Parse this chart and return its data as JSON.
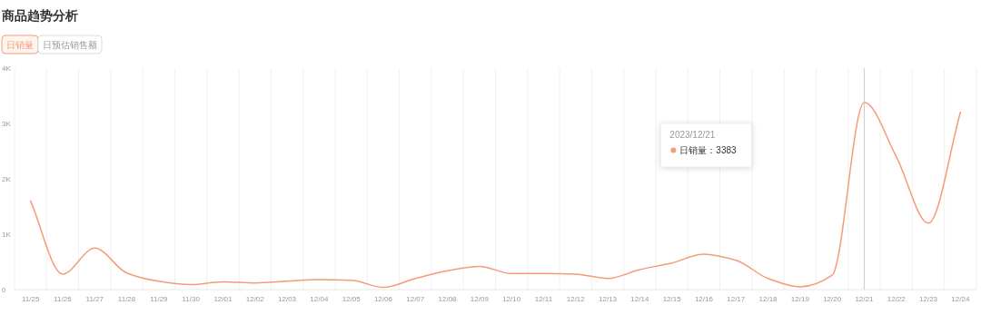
{
  "chart_data": {
    "type": "line",
    "title": "商品趋势分析",
    "categories": [
      "11/25",
      "11/26",
      "11/27",
      "11/28",
      "11/29",
      "11/30",
      "12/01",
      "12/02",
      "12/03",
      "12/04",
      "12/05",
      "12/06",
      "12/07",
      "12/08",
      "12/09",
      "12/10",
      "12/11",
      "12/12",
      "12/13",
      "12/14",
      "12/15",
      "12/16",
      "12/17",
      "12/18",
      "12/19",
      "12/20",
      "12/21",
      "12/22",
      "12/23",
      "12/24"
    ],
    "series": [
      {
        "name": "日销量",
        "color": "#f59a7a",
        "values": [
          1600,
          280,
          750,
          300,
          150,
          90,
          140,
          120,
          150,
          180,
          170,
          40,
          200,
          340,
          420,
          290,
          290,
          280,
          200,
          360,
          480,
          640,
          530,
          200,
          50,
          260,
          3383,
          2400,
          1200,
          3200
        ]
      }
    ],
    "ref_lines": [
      {
        "axis": "x",
        "value": "12/21",
        "color": "#cccccc"
      }
    ],
    "ylim": [
      0,
      4000
    ],
    "yticks": [
      0,
      {
        "value": 1000,
        "label": "1K"
      },
      {
        "value": 2000,
        "label": "2K"
      },
      {
        "value": 3000,
        "label": "3K"
      },
      {
        "value": 4000,
        "label": "4K"
      }
    ],
    "grid": "x",
    "legend": "top left",
    "marker": "none",
    "line_style": "solid",
    "annotations": [
      "日预估销售额",
      "2023/12/21",
      "日销量：3383"
    ]
  }
}
